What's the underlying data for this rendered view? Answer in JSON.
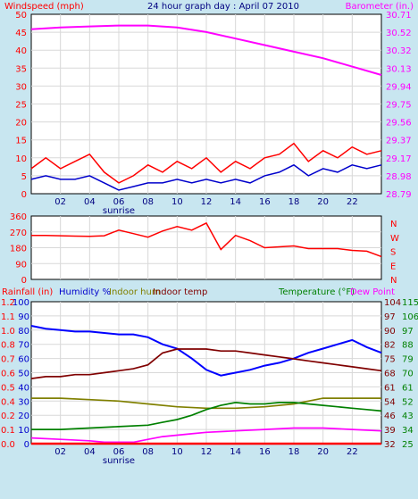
{
  "chart_data": [
    {
      "type": "line",
      "title": "24 hour graph day : April 07 2010",
      "left_label": "Windspeed (mph)",
      "right_label": "Barometer (in.)",
      "y_left": {
        "min": 0,
        "max": 50,
        "ticks": [
          "0",
          "5",
          "10",
          "15",
          "20",
          "25",
          "30",
          "35",
          "40",
          "45",
          "50"
        ]
      },
      "y_right": {
        "min": 28.79,
        "max": 30.71,
        "ticks": [
          "28.79",
          "28.98",
          "29.17",
          "29.37",
          "29.56",
          "29.75",
          "29.94",
          "30.13",
          "30.32",
          "30.52",
          "30.71"
        ]
      },
      "x_ticks": [
        "02",
        "04",
        "06",
        "08",
        "10",
        "12",
        "14",
        "16",
        "18",
        "20",
        "22"
      ],
      "sunrise_label": "sunrise",
      "series": [
        {
          "color": "#ff00ff",
          "axis": "right",
          "x": [
            0,
            2,
            4,
            6,
            8,
            10,
            12,
            14,
            16,
            18,
            20,
            22,
            24
          ],
          "y": [
            30.55,
            30.57,
            30.58,
            30.59,
            30.59,
            30.57,
            30.52,
            30.45,
            30.38,
            30.31,
            30.24,
            30.15,
            30.06
          ]
        },
        {
          "color": "#ff0000",
          "axis": "left",
          "x": [
            0,
            1,
            2,
            3,
            4,
            5,
            6,
            7,
            8,
            9,
            10,
            11,
            12,
            13,
            14,
            15,
            16,
            17,
            18,
            19,
            20,
            21,
            22,
            23,
            24
          ],
          "y": [
            7,
            10,
            7,
            9,
            11,
            6,
            3,
            5,
            8,
            6,
            9,
            7,
            10,
            6,
            9,
            7,
            10,
            11,
            14,
            9,
            12,
            10,
            13,
            11,
            12
          ]
        },
        {
          "color": "#0000cc",
          "axis": "left",
          "x": [
            0,
            1,
            2,
            3,
            4,
            5,
            6,
            7,
            8,
            9,
            10,
            11,
            12,
            13,
            14,
            15,
            16,
            17,
            18,
            19,
            20,
            21,
            22,
            23,
            24
          ],
          "y": [
            4,
            5,
            4,
            4,
            5,
            3,
            1,
            2,
            3,
            3,
            4,
            3,
            4,
            3,
            4,
            3,
            5,
            6,
            8,
            5,
            7,
            6,
            8,
            7,
            8
          ]
        }
      ]
    },
    {
      "type": "line",
      "left_ticks": [
        "0",
        "90",
        "180",
        "270",
        "360"
      ],
      "right_labels": [
        "N",
        "W",
        "S",
        "E",
        "N"
      ],
      "y": {
        "min": 0,
        "max": 360
      },
      "series": [
        {
          "color": "#ff0000",
          "x": [
            0,
            1,
            2,
            3,
            4,
            5,
            6,
            7,
            8,
            9,
            10,
            11,
            12,
            13,
            14,
            15,
            16,
            17,
            18,
            19,
            20,
            21,
            22,
            23,
            24
          ],
          "y": [
            250,
            250,
            248,
            246,
            245,
            248,
            280,
            260,
            240,
            275,
            300,
            280,
            320,
            170,
            250,
            220,
            180,
            185,
            190,
            175,
            175,
            175,
            165,
            160,
            130
          ]
        }
      ]
    },
    {
      "type": "line",
      "label_rainfall": "Rainfall (in)",
      "label_humidity": "Humidity %",
      "label_indoor_hum": "Indoor hum",
      "label_indoor_temp": "Indoor temp",
      "label_temperature": "Temperature (°F)",
      "label_dew_point": "Dew Point",
      "rain_ticks": [
        "0.0",
        "0.1",
        "0.2",
        "0.4",
        "0.5",
        "0.6",
        "0.7",
        "0.8",
        "1.0",
        "1.1",
        "1.2"
      ],
      "hum_ticks": [
        "0",
        "10",
        "20",
        "30",
        "40",
        "50",
        "60",
        "70",
        "80",
        "90",
        "100"
      ],
      "indoor_temp_ticks": [
        "32",
        "39",
        "46",
        "54",
        "61",
        "68",
        "75",
        "82",
        "90",
        "97",
        "104"
      ],
      "temp_ticks": [
        "25",
        "34",
        "43",
        "52",
        "61",
        "70",
        "79",
        "88",
        "97",
        "106",
        "115"
      ],
      "x_ticks": [
        "02",
        "04",
        "06",
        "08",
        "10",
        "12",
        "14",
        "16",
        "18",
        "20",
        "22"
      ],
      "sunrise_label": "sunrise",
      "series": [
        {
          "color": "#0000ff",
          "axis": "humidity",
          "x": [
            0,
            1,
            2,
            3,
            4,
            5,
            6,
            7,
            8,
            9,
            10,
            11,
            12,
            13,
            14,
            15,
            16,
            17,
            18,
            19,
            20,
            21,
            22,
            23,
            24
          ],
          "y": [
            83,
            81,
            80,
            79,
            79,
            78,
            77,
            77,
            75,
            70,
            67,
            60,
            52,
            48,
            50,
            52,
            55,
            57,
            60,
            64,
            67,
            70,
            73,
            68,
            64
          ]
        },
        {
          "color": "#800000",
          "axis": "indoor_temp",
          "x": [
            0,
            1,
            2,
            3,
            4,
            5,
            6,
            7,
            8,
            9,
            10,
            11,
            12,
            13,
            14,
            15,
            16,
            17,
            18,
            19,
            20,
            21,
            22,
            23,
            24
          ],
          "y": [
            65,
            66,
            66,
            67,
            67,
            68,
            69,
            70,
            72,
            78,
            80,
            80,
            80,
            79,
            79,
            78,
            77,
            76,
            75,
            74,
            73,
            72,
            71,
            70,
            69
          ]
        },
        {
          "color": "#808000",
          "axis": "humidity",
          "x": [
            0,
            2,
            4,
            6,
            8,
            10,
            12,
            14,
            16,
            18,
            19,
            20,
            22,
            24
          ],
          "y": [
            32,
            32,
            31,
            30,
            28,
            26,
            25,
            25,
            26,
            28,
            30,
            32,
            32,
            32
          ]
        },
        {
          "color": "#008000",
          "axis": "humidity",
          "x": [
            0,
            2,
            4,
            6,
            8,
            9,
            10,
            11,
            12,
            13,
            14,
            15,
            16,
            17,
            18,
            19,
            20,
            21,
            22,
            23,
            24
          ],
          "y": [
            10,
            10,
            11,
            12,
            13,
            15,
            17,
            20,
            24,
            27,
            29,
            28,
            28,
            29,
            29,
            28,
            27,
            26,
            25,
            24,
            23
          ]
        },
        {
          "color": "#ff00ff",
          "axis": "humidity",
          "x": [
            0,
            2,
            4,
            5,
            6,
            7,
            8,
            9,
            10,
            11,
            12,
            14,
            16,
            18,
            20,
            22,
            24
          ],
          "y": [
            4,
            3,
            2,
            1,
            1,
            1,
            3,
            5,
            6,
            7,
            8,
            9,
            10,
            11,
            11,
            10,
            9
          ]
        },
        {
          "color": "#ff0000",
          "axis": "rain",
          "x": [
            0,
            24
          ],
          "y": [
            0,
            0
          ]
        }
      ]
    }
  ]
}
